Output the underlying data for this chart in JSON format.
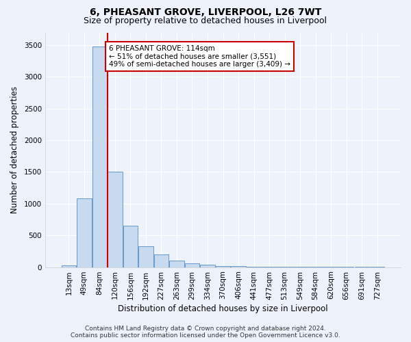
{
  "title_line1": "6, PHEASANT GROVE, LIVERPOOL, L26 7WT",
  "title_line2": "Size of property relative to detached houses in Liverpool",
  "xlabel": "Distribution of detached houses by size in Liverpool",
  "ylabel": "Number of detached properties",
  "categories": [
    "13sqm",
    "49sqm",
    "84sqm",
    "120sqm",
    "156sqm",
    "192sqm",
    "227sqm",
    "263sqm",
    "299sqm",
    "334sqm",
    "370sqm",
    "406sqm",
    "441sqm",
    "477sqm",
    "513sqm",
    "549sqm",
    "584sqm",
    "620sqm",
    "656sqm",
    "691sqm",
    "727sqm"
  ],
  "bar_heights": [
    30,
    1080,
    3480,
    1500,
    650,
    330,
    200,
    100,
    60,
    35,
    20,
    12,
    8,
    5,
    3,
    2,
    1,
    1,
    1,
    1,
    1
  ],
  "bar_color": "#c8daf0",
  "bar_edge_color": "#6699cc",
  "red_line_x": 2.5,
  "highlight_line_color": "#cc0000",
  "ylim": [
    0,
    3700
  ],
  "yticks": [
    0,
    500,
    1000,
    1500,
    2000,
    2500,
    3000,
    3500
  ],
  "annotation_text": "6 PHEASANT GROVE: 114sqm\n← 51% of detached houses are smaller (3,551)\n49% of semi-detached houses are larger (3,409) →",
  "annotation_box_color": "#ffffff",
  "annotation_box_edge": "#cc0000",
  "footer_line1": "Contains HM Land Registry data © Crown copyright and database right 2024.",
  "footer_line2": "Contains public sector information licensed under the Open Government Licence v3.0.",
  "background_color": "#edf2fb",
  "grid_color": "#ffffff",
  "title_fontsize": 10,
  "subtitle_fontsize": 9,
  "axis_label_fontsize": 8.5,
  "tick_fontsize": 7.5,
  "annotation_fontsize": 7.5,
  "footer_fontsize": 6.5
}
